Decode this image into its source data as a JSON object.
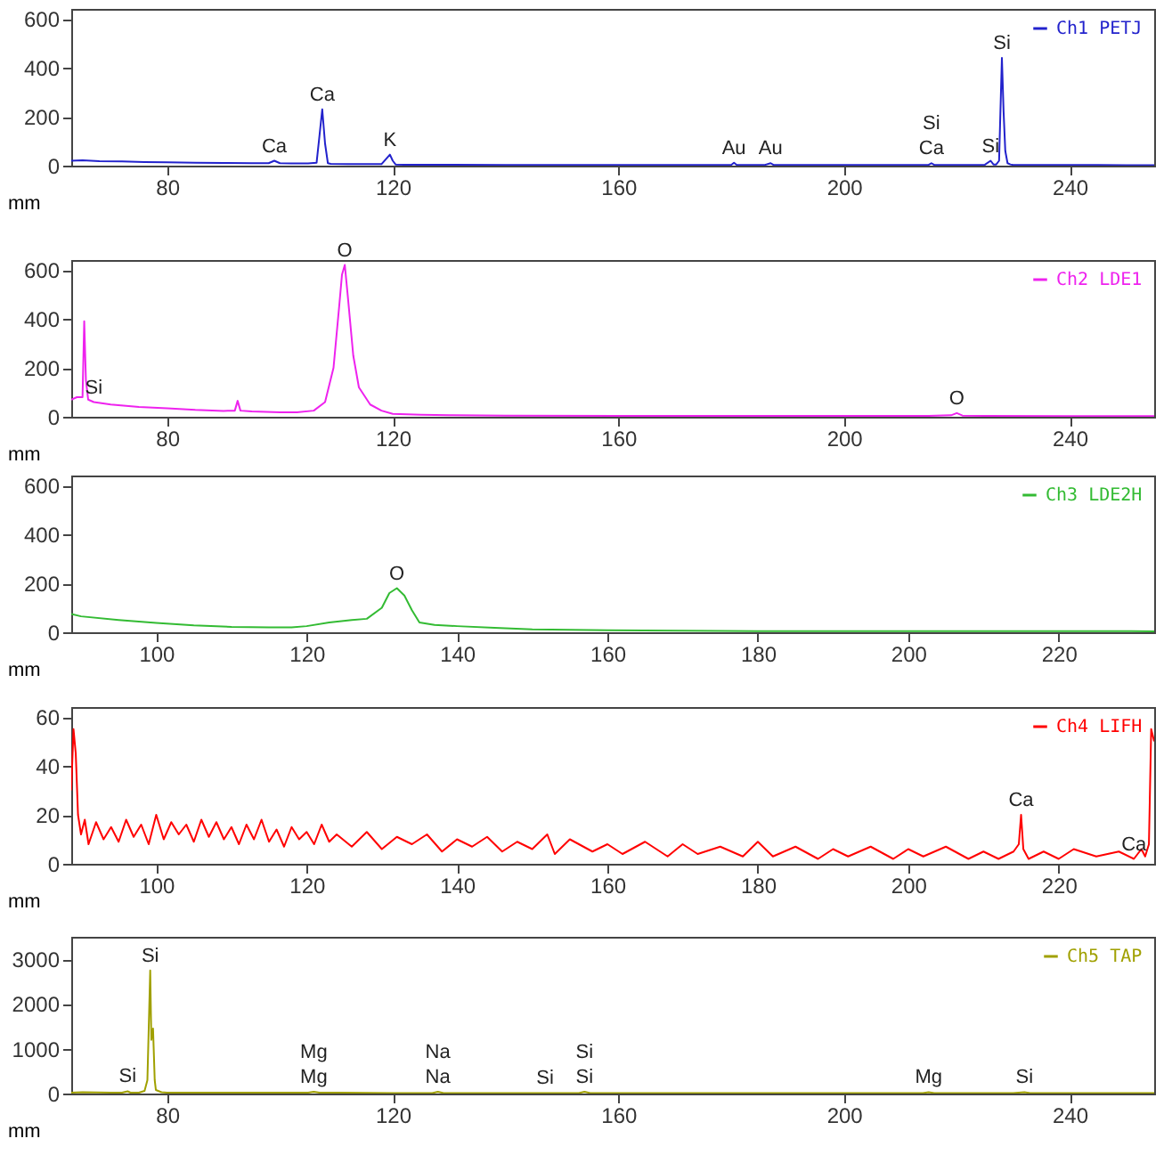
{
  "chart_data": [
    {
      "type": "line",
      "xlabel": "mm",
      "xlim": [
        63,
        255
      ],
      "xticks": [
        80,
        120,
        160,
        200,
        240
      ],
      "ylim": [
        0,
        640
      ],
      "yticks": [
        0,
        200,
        400,
        600
      ],
      "legend": "top right",
      "x": [
        63,
        65,
        68,
        72,
        76,
        80,
        85,
        90,
        95,
        98,
        99,
        100,
        102,
        105,
        106.5,
        107,
        107.5,
        108,
        108.5,
        109,
        112,
        115,
        118,
        119.5,
        120,
        120.5,
        122,
        130,
        140,
        150,
        160,
        170,
        180,
        180.5,
        181,
        186,
        187,
        187.5,
        190,
        200,
        210,
        215,
        215.5,
        216,
        220,
        225,
        226,
        226.5,
        227,
        227.5,
        228,
        228.3,
        228.6,
        229,
        229.5,
        230,
        235,
        240,
        245,
        250,
        255
      ],
      "series": [
        {
          "name": "Ch1 PETJ",
          "color": "#2222cc",
          "values": [
            20,
            22,
            18,
            17,
            15,
            14,
            12,
            11,
            10,
            10,
            20,
            10,
            9,
            9,
            12,
            120,
            230,
            90,
            10,
            7,
            6,
            6,
            6,
            45,
            20,
            5,
            4,
            4,
            3,
            3,
            3,
            3,
            3,
            12,
            3,
            3,
            10,
            3,
            3,
            3,
            3,
            3,
            10,
            3,
            3,
            4,
            20,
            5,
            5,
            20,
            440,
            220,
            60,
            10,
            5,
            3,
            3,
            3,
            3,
            2,
            2
          ]
        }
      ],
      "annotations": [
        {
          "text": "Ca",
          "x": 99,
          "y": 20
        },
        {
          "text": "Ca",
          "x": 107.5,
          "y": 230
        },
        {
          "text": "K",
          "x": 119.5,
          "y": 45
        },
        {
          "text": "Au",
          "x": 180.5,
          "y": 12
        },
        {
          "text": "Au",
          "x": 187,
          "y": 10
        },
        {
          "text": "Ca",
          "x": 215.5,
          "y": 10
        },
        {
          "text": "Si",
          "x": 215.5,
          "y": 10
        },
        {
          "text": "Si",
          "x": 226,
          "y": 20
        },
        {
          "text": "Si",
          "x": 228,
          "y": 440
        }
      ]
    },
    {
      "type": "line",
      "xlabel": "mm",
      "xlim": [
        63,
        255
      ],
      "xticks": [
        80,
        120,
        160,
        200,
        240
      ],
      "ylim": [
        0,
        640
      ],
      "yticks": [
        0,
        200,
        400,
        600
      ],
      "legend": "top right",
      "x": [
        63,
        64,
        65,
        65.3,
        65.6,
        66,
        67,
        70,
        75,
        80,
        85,
        90,
        92,
        92.5,
        93,
        95,
        100,
        103,
        106,
        108,
        109.5,
        110.5,
        111,
        111.5,
        112,
        113,
        114,
        116,
        118,
        120,
        125,
        130,
        140,
        160,
        180,
        200,
        215,
        219,
        220,
        221,
        225,
        240,
        255
      ],
      "series": [
        {
          "name": "Ch2 LDE1",
          "color": "#ee22ee",
          "values": [
            70,
            80,
            80,
            390,
            150,
            70,
            60,
            50,
            40,
            35,
            28,
            24,
            25,
            65,
            25,
            22,
            18,
            18,
            25,
            60,
            200,
            450,
            580,
            620,
            500,
            250,
            120,
            50,
            25,
            12,
            8,
            6,
            5,
            4,
            4,
            4,
            4,
            6,
            15,
            5,
            4,
            3,
            3
          ]
        }
      ],
      "annotations": [
        {
          "text": "O",
          "x": 111.5,
          "y": 620
        },
        {
          "text": "Si",
          "x": 67,
          "y": 60
        },
        {
          "text": "O",
          "x": 220,
          "y": 15
        }
      ]
    },
    {
      "type": "line",
      "xlabel": "mm",
      "xlim": [
        88.7,
        232.7
      ],
      "xticks": [
        100,
        120,
        140,
        160,
        180,
        200,
        220
      ],
      "ylim": [
        0,
        640
      ],
      "yticks": [
        0,
        200,
        400,
        600
      ],
      "legend": "top right",
      "x": [
        88.7,
        90,
        95,
        100,
        105,
        110,
        115,
        118,
        120,
        123,
        126,
        128,
        130,
        131,
        132,
        133,
        134,
        135,
        137,
        140,
        145,
        150,
        160,
        170,
        180,
        200,
        220,
        232.7
      ],
      "series": [
        {
          "name": "Ch3 LDE2H",
          "color": "#33bb33",
          "values": [
            75,
            65,
            50,
            38,
            28,
            22,
            20,
            20,
            25,
            40,
            50,
            55,
            100,
            160,
            180,
            150,
            90,
            40,
            30,
            25,
            18,
            12,
            8,
            6,
            5,
            5,
            5,
            4
          ]
        }
      ],
      "annotations": [
        {
          "text": "O",
          "x": 132,
          "y": 180
        }
      ]
    },
    {
      "type": "line",
      "xlabel": "mm",
      "xlim": [
        88.7,
        232.7
      ],
      "xticks": [
        100,
        120,
        140,
        160,
        180,
        200,
        220
      ],
      "ylim": [
        0,
        64
      ],
      "yticks": [
        0,
        20,
        40,
        60
      ],
      "legend": "top right",
      "x": [
        88.7,
        89,
        89.3,
        89.6,
        90,
        90.5,
        91,
        92,
        93,
        94,
        95,
        96,
        97,
        98,
        99,
        100,
        101,
        102,
        103,
        104,
        105,
        106,
        107,
        108,
        109,
        110,
        111,
        112,
        113,
        114,
        115,
        116,
        117,
        118,
        119,
        120,
        121,
        122,
        123,
        124,
        126,
        128,
        130,
        132,
        134,
        136,
        138,
        140,
        142,
        144,
        146,
        148,
        150,
        152,
        153,
        155,
        158,
        160,
        162,
        165,
        168,
        170,
        172,
        175,
        178,
        180,
        182,
        185,
        188,
        190,
        192,
        195,
        198,
        200,
        202,
        205,
        208,
        210,
        212,
        214,
        214.7,
        215,
        215.3,
        216,
        218,
        220,
        222,
        225,
        228,
        230,
        231,
        231.5,
        232,
        232.3,
        232.7
      ],
      "series": [
        {
          "name": "Ch4 LIFH",
          "color": "#ff0000",
          "values": [
            30,
            55,
            45,
            20,
            12,
            18,
            8,
            17,
            10,
            15,
            9,
            18,
            11,
            16,
            8,
            20,
            10,
            17,
            12,
            16,
            9,
            18,
            11,
            17,
            10,
            15,
            8,
            16,
            10,
            18,
            9,
            14,
            7,
            15,
            10,
            13,
            8,
            16,
            9,
            12,
            7,
            13,
            6,
            11,
            8,
            12,
            5,
            10,
            7,
            11,
            5,
            9,
            6,
            12,
            4,
            10,
            5,
            8,
            4,
            9,
            3,
            8,
            4,
            7,
            3,
            9,
            3,
            7,
            2,
            6,
            3,
            7,
            2,
            6,
            3,
            7,
            2,
            5,
            2,
            5,
            8,
            20,
            6,
            2,
            5,
            2,
            6,
            3,
            5,
            2,
            6,
            3,
            8,
            55,
            50
          ]
        }
      ],
      "annotations": [
        {
          "text": "Ca",
          "x": 215,
          "y": 20
        },
        {
          "text": "Ca",
          "x": 230,
          "y": 2
        }
      ]
    },
    {
      "type": "line",
      "xlabel": "mm",
      "xlim": [
        63,
        255
      ],
      "xticks": [
        80,
        120,
        160,
        200,
        240
      ],
      "ylim": [
        0,
        3500
      ],
      "yticks": [
        0,
        1000,
        2000,
        3000
      ],
      "legend": "top right",
      "x": [
        63,
        65,
        70,
        72,
        73,
        73.5,
        75,
        76,
        76.5,
        77,
        77.2,
        77.5,
        77.8,
        78,
        79,
        80,
        85,
        90,
        100,
        105,
        106,
        107,
        110,
        120,
        127,
        128,
        129,
        130,
        140,
        147,
        150,
        153,
        154,
        155,
        156,
        160,
        180,
        200,
        214,
        215,
        216,
        220,
        230,
        232,
        233,
        240,
        255
      ],
      "series": [
        {
          "name": "Ch5 TAP",
          "color": "#a0a000",
          "values": [
            20,
            30,
            20,
            20,
            50,
            20,
            20,
            60,
            300,
            2750,
            1200,
            1450,
            300,
            80,
            30,
            20,
            20,
            20,
            20,
            20,
            40,
            20,
            20,
            10,
            10,
            40,
            10,
            10,
            10,
            10,
            10,
            10,
            40,
            10,
            10,
            10,
            10,
            10,
            10,
            30,
            10,
            10,
            10,
            30,
            10,
            10,
            10
          ]
        }
      ],
      "annotations": [
        {
          "text": "Si",
          "x": 73,
          "y": 50
        },
        {
          "text": "Si",
          "x": 77,
          "y": 2750
        },
        {
          "text": "Mg",
          "x": 106,
          "y": 40
        },
        {
          "text": "Mg",
          "x": 106,
          "y": 40
        },
        {
          "text": "Na",
          "x": 128,
          "y": 40
        },
        {
          "text": "Na",
          "x": 128,
          "y": 40
        },
        {
          "text": "Si",
          "x": 147,
          "y": 10
        },
        {
          "text": "Si",
          "x": 154,
          "y": 40
        },
        {
          "text": "Si",
          "x": 154,
          "y": 40
        },
        {
          "text": "Mg",
          "x": 215,
          "y": 30
        },
        {
          "text": "Si",
          "x": 232,
          "y": 30
        }
      ]
    }
  ]
}
